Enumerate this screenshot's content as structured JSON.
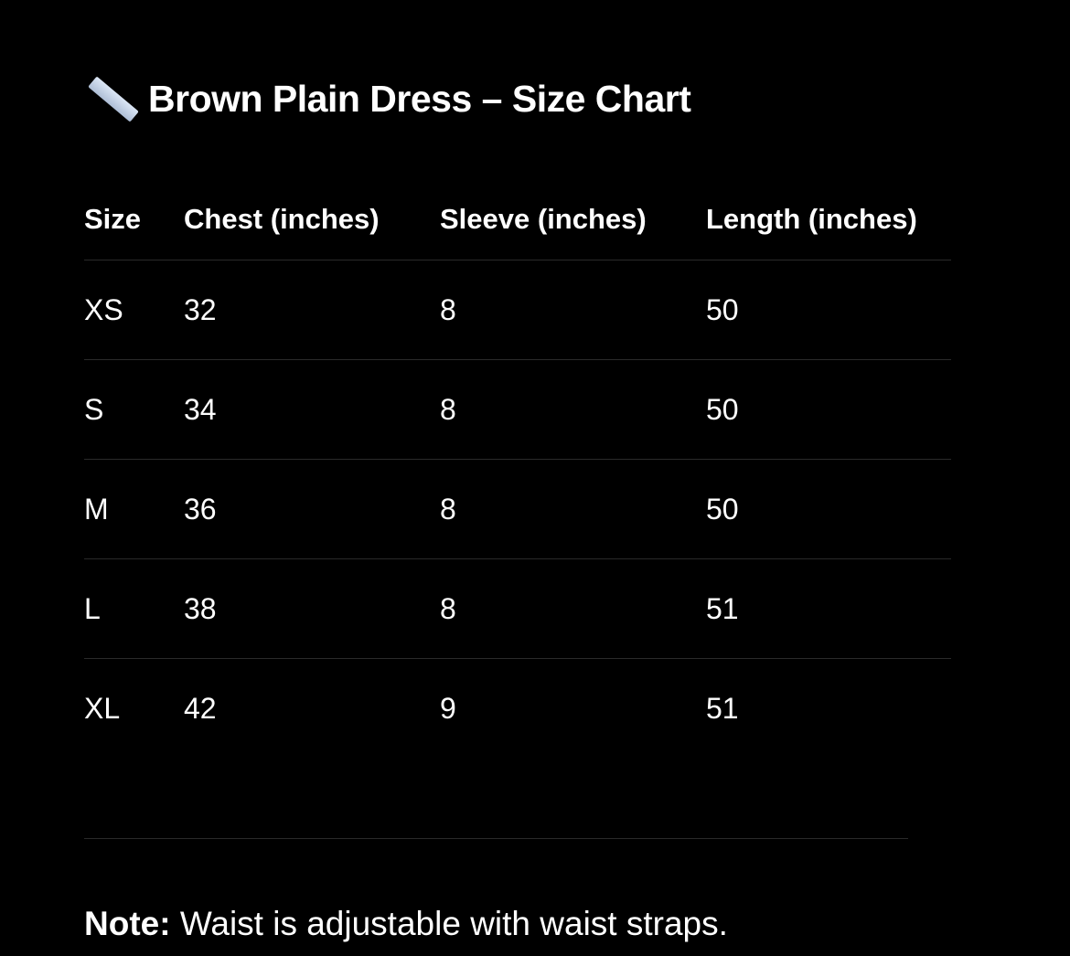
{
  "title": {
    "icon": "straight-ruler-icon",
    "text": "Brown Plain Dress – Size Chart"
  },
  "table": {
    "headers": [
      "Size",
      "Chest (inches)",
      "Sleeve (inches)",
      "Length (inches)"
    ],
    "rows": [
      [
        "XS",
        "32",
        "8",
        "50"
      ],
      [
        "S",
        "34",
        "8",
        "50"
      ],
      [
        "M",
        "36",
        "8",
        "50"
      ],
      [
        "L",
        "38",
        "8",
        "51"
      ],
      [
        "XL",
        "42",
        "9",
        "51"
      ]
    ]
  },
  "note": {
    "label": "Note:",
    "text": " Waist is adjustable with waist straps."
  }
}
